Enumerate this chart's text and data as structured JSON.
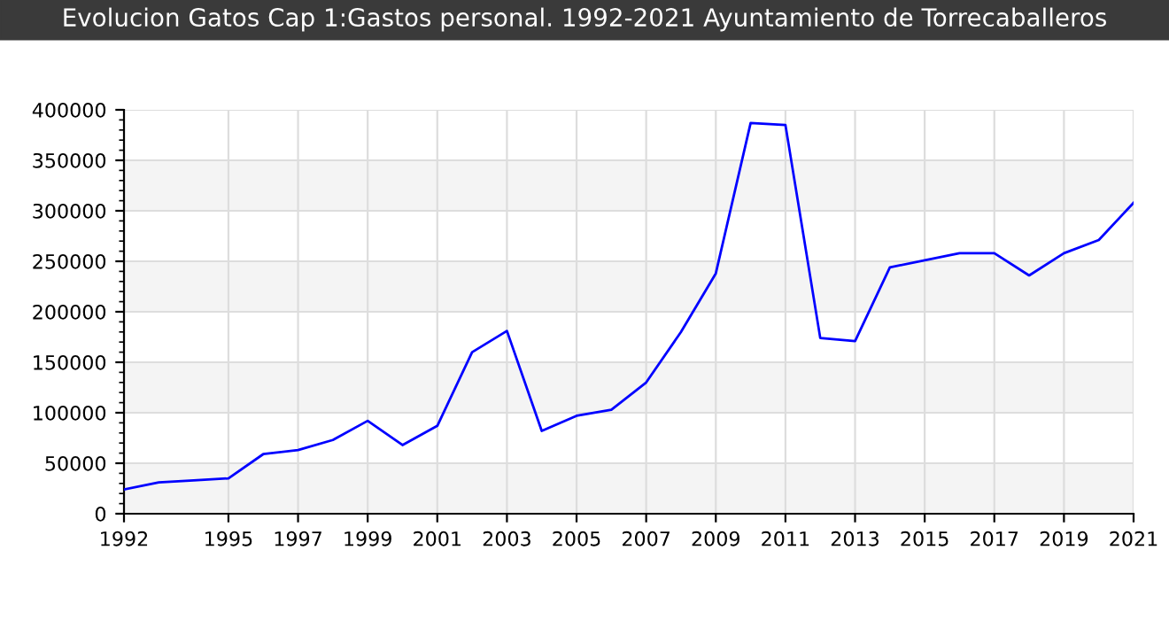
{
  "chart_data": {
    "type": "line",
    "title": "Evolucion Gatos Cap 1:Gastos personal. 1992-2021 Ayuntamiento de Torrecaballeros",
    "x": [
      1992,
      1993,
      1994,
      1995,
      1996,
      1997,
      1998,
      1999,
      2000,
      2001,
      2002,
      2003,
      2004,
      2005,
      2006,
      2007,
      2008,
      2009,
      2010,
      2011,
      2012,
      2013,
      2014,
      2015,
      2016,
      2017,
      2018,
      2019,
      2020,
      2021
    ],
    "series": [
      {
        "color": "#0000ff",
        "values": [
          24000,
          31000,
          33000,
          35000,
          59000,
          63000,
          73000,
          92000,
          68000,
          87000,
          160000,
          181000,
          82000,
          97000,
          103000,
          130000,
          180000,
          238000,
          387000,
          385000,
          174000,
          171000,
          244000,
          251000,
          258000,
          258000,
          236000,
          258000,
          271000,
          308000
        ]
      }
    ],
    "xlim": [
      1992,
      2021
    ],
    "xticks": [
      1992,
      1995,
      1997,
      1999,
      2001,
      2003,
      2005,
      2007,
      2009,
      2011,
      2013,
      2015,
      2017,
      2019,
      2021
    ],
    "ylim": [
      0,
      400000
    ],
    "yticks": [
      0,
      50000,
      100000,
      150000,
      200000,
      250000,
      300000,
      350000,
      400000
    ],
    "grid": true,
    "marker": "none",
    "line_style": "solid",
    "legend": false
  }
}
